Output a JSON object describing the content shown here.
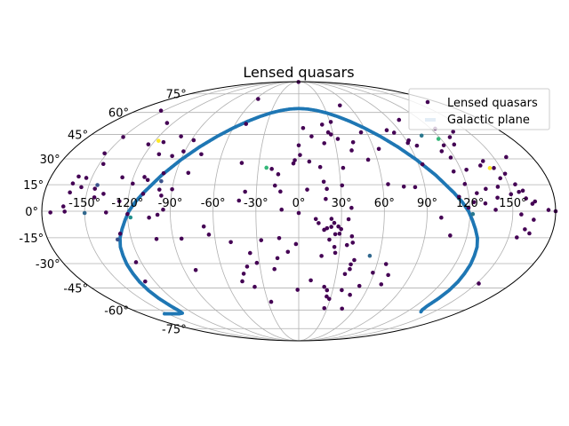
{
  "chart_data": {
    "type": "scatter",
    "projection": "mollweide",
    "title": "Lensed quasars",
    "xlabel": "",
    "ylabel": "",
    "grid": true,
    "legend_placement": "top-right",
    "x_ticks": [
      "-150°",
      "-120°",
      "-90°",
      "-60°",
      "-30°",
      "0°",
      "30°",
      "60°",
      "90°",
      "120°",
      "150°"
    ],
    "x_tick_values": [
      -150,
      -120,
      -90,
      -60,
      -30,
      0,
      30,
      60,
      90,
      120,
      150
    ],
    "y_ticks": [
      "-75°",
      "-60°",
      "-45°",
      "-30°",
      "-15°",
      "0°",
      "15°",
      "30°",
      "45°",
      "60°",
      "75°"
    ],
    "y_tick_values": [
      -75,
      -60,
      -45,
      -30,
      -15,
      0,
      15,
      30,
      45,
      60,
      75
    ],
    "series": [
      {
        "name": "Lensed quasars",
        "color": "#440154",
        "points": [
          [
            -2.4,
            89.0
          ],
          [
            -153,
            61.3
          ],
          [
            -150,
            43.4
          ],
          [
            -152,
            33.3
          ],
          [
            -147,
            27.0
          ],
          [
            -126,
            52.6
          ],
          [
            -123,
            38.8
          ],
          [
            -112,
            40.2
          ],
          [
            -109,
            32.8
          ],
          [
            -101,
            43.8
          ],
          [
            -98,
            31.7
          ],
          [
            -88,
            41.4
          ],
          [
            -91,
            34.5
          ],
          [
            -112,
            19.4
          ],
          [
            -99,
            21.6
          ],
          [
            -76,
            32.8
          ],
          [
            -81,
            21.8
          ],
          [
            -110,
            9.8
          ],
          [
            -128,
            19.2
          ],
          [
            -126,
            5.6
          ],
          [
            -145,
            12.7
          ],
          [
            -138,
            9.8
          ],
          [
            -144,
            7.8
          ],
          [
            -155,
            13.6
          ],
          [
            -160,
            19.7
          ],
          [
            -162,
            15.7
          ],
          [
            -162,
            10.6
          ],
          [
            -154,
            18.9
          ],
          [
            -165,
            2.7
          ],
          [
            -174,
            -0.7
          ],
          [
            -164,
            -0.2
          ],
          [
            -120,
            -1.6
          ],
          [
            -135,
            -0.7
          ],
          [
            -119,
            15.6
          ],
          [
            -109,
            17.7
          ],
          [
            -105,
            -3.6
          ],
          [
            -99,
            12.2
          ],
          [
            -97,
            8.8
          ],
          [
            -90,
            12.4
          ],
          [
            -95,
            0.9
          ],
          [
            -99,
            -2.0
          ],
          [
            -127,
            -12.7
          ],
          [
            -102,
            -15.7
          ],
          [
            -84,
            -15.5
          ],
          [
            -67,
            -8.6
          ],
          [
            -64,
            -13.2
          ],
          [
            -128,
            -40.9
          ],
          [
            -124,
            -29.2
          ],
          [
            -81,
            -33.9
          ],
          [
            -43,
            27.6
          ],
          [
            -38,
            11.0
          ],
          [
            -42,
            6.0
          ],
          [
            -49,
            -17.5
          ],
          [
            -44,
            -36.1
          ],
          [
            -47,
            -40.8
          ],
          [
            -38,
            -44.3
          ],
          [
            -36,
            -23.8
          ],
          [
            -40,
            -31.8
          ],
          [
            -32,
            -29.6
          ],
          [
            -27,
            -54.2
          ],
          [
            -1,
            -46.2
          ],
          [
            -19,
            -33.3
          ],
          [
            -16,
            -26.8
          ],
          [
            -14,
            -15.2
          ],
          [
            -27,
            -16.4
          ],
          [
            -8,
            -23.1
          ],
          [
            -2,
            -18.6
          ],
          [
            -12,
            0.9
          ],
          [
            0,
            -1.0
          ],
          [
            -4,
            27.3
          ],
          [
            -13,
            11.1
          ],
          [
            -17,
            14.5
          ],
          [
            -15,
            21.0
          ],
          [
            -20,
            24.1
          ],
          [
            6,
            12.2
          ],
          [
            18,
            16.7
          ],
          [
            20,
            12.6
          ],
          [
            19,
            6.9
          ],
          [
            12,
            -4.4
          ],
          [
            14,
            -6.7
          ],
          [
            18,
            -10.5
          ],
          [
            20,
            -9.6
          ],
          [
            23,
            -4.3
          ],
          [
            23,
            -8.8
          ],
          [
            28,
            -8.6
          ],
          [
            25,
            -6.6
          ],
          [
            26,
            -13.0
          ],
          [
            29,
            -12.7
          ],
          [
            30,
            -10.1
          ],
          [
            35,
            -4.5
          ],
          [
            37,
            1.9
          ],
          [
            38,
            -14.2
          ],
          [
            39,
            -17.8
          ],
          [
            26,
            -20.3
          ],
          [
            27,
            -23.7
          ],
          [
            35,
            -19.2
          ],
          [
            37,
            -36.3
          ],
          [
            17,
            -25.5
          ],
          [
            22,
            -16.1
          ],
          [
            22,
            -44.3
          ],
          [
            25,
            -46.5
          ],
          [
            27,
            -58.7
          ],
          [
            10,
            -40.2
          ],
          [
            42,
            -27.9
          ],
          [
            40,
            -30.5
          ],
          [
            40,
            -33.3
          ],
          [
            52,
            -43.7
          ],
          [
            59,
            -35.5
          ],
          [
            72,
            -36.9
          ],
          [
            67,
            -30.3
          ],
          [
            70,
            -42.7
          ],
          [
            38,
            -46.4
          ],
          [
            29,
            -52.2
          ],
          [
            26,
            -50.6
          ],
          [
            47,
            -49.5
          ],
          [
            46,
            -59.0
          ],
          [
            31,
            53.3
          ],
          [
            21,
            39.5
          ],
          [
            22,
            51.5
          ],
          [
            26,
            46.4
          ],
          [
            28,
            45.0
          ],
          [
            33,
            42.2
          ],
          [
            45,
            40.1
          ],
          [
            42,
            35.1
          ],
          [
            53,
            29.5
          ],
          [
            55,
            46.4
          ],
          [
            11,
            43.8
          ],
          [
            4,
            49.2
          ],
          [
            1,
            32.3
          ],
          [
            8,
            28.4
          ],
          [
            16,
            25.2
          ],
          [
            -3,
            29.2
          ],
          [
            31,
            14.6
          ],
          [
            33,
            24.7
          ],
          [
            64,
            15.3
          ],
          [
            75,
            13.9
          ],
          [
            83,
            13.6
          ],
          [
            100,
            -3.6
          ],
          [
            108,
            -13.7
          ],
          [
            117,
            30.8
          ],
          [
            124,
            23.6
          ],
          [
            113,
            34.6
          ],
          [
            118,
            38.2
          ],
          [
            127,
            38.7
          ],
          [
            129,
            43.3
          ],
          [
            124,
            48.8
          ],
          [
            99,
            54.7
          ],
          [
            79,
            47.8
          ],
          [
            84,
            46.2
          ],
          [
            92,
            41.3
          ],
          [
            96,
            38.0
          ],
          [
            140,
            28.7
          ],
          [
            136,
            26.1
          ],
          [
            145,
            24.6
          ],
          [
            151,
            21.3
          ],
          [
            155,
            15.2
          ],
          [
            146,
            18.7
          ],
          [
            156,
            10.9
          ],
          [
            150,
            9.6
          ],
          [
            160,
            7.2
          ],
          [
            159,
            11.6
          ],
          [
            166,
            5.5
          ],
          [
            164,
            4.2
          ],
          [
            175,
            0.7
          ],
          [
            140,
            7.6
          ],
          [
            138,
            0.8
          ],
          [
            131,
            4.4
          ],
          [
            133,
            12.6
          ],
          [
            142,
            13.8
          ],
          [
            119,
            15.4
          ],
          [
            123,
            5.1
          ],
          [
            126,
            10.2
          ],
          [
            119,
            2.0
          ],
          [
            113,
            8.1
          ],
          [
            156,
            -14.8
          ],
          [
            165,
            -4.8
          ],
          [
            164,
            -12.5
          ],
          [
            152,
            -42.2
          ],
          [
            180,
            0
          ],
          [
            160,
            -10.2
          ],
          [
            160,
            31.1
          ],
          [
            114,
            22.6
          ],
          [
            156,
            -1.8
          ],
          [
            90,
            39.7
          ],
          [
            50,
            65.3
          ],
          [
            -50,
            52.0
          ],
          [
            -57,
            70.5
          ],
          [
            0,
            38.2
          ],
          [
            64,
            36.0
          ],
          [
            93,
            26.8
          ],
          [
            137,
            46.8
          ]
        ]
      },
      {
        "name": "Galactic plane",
        "color": "#1f77b4",
        "points": [
          [
            0,
            62.9
          ],
          [
            -10,
            62.5
          ],
          [
            -20,
            61.4
          ],
          [
            -30,
            59.6
          ],
          [
            -40,
            57.0
          ],
          [
            -50,
            53.6
          ],
          [
            -60,
            49.2
          ],
          [
            -70,
            43.8
          ],
          [
            -80,
            37.2
          ],
          [
            -90,
            29.4
          ],
          [
            -100,
            20.4
          ],
          [
            -110,
            10.3
          ],
          [
            -115,
            5.0
          ],
          [
            -119,
            0
          ],
          [
            -122,
            -5.1
          ],
          [
            -125,
            -10.1
          ],
          [
            -128,
            -15.2
          ],
          [
            -130,
            -20.3
          ],
          [
            -131,
            -25.4
          ],
          [
            -132,
            -30.5
          ],
          [
            -132.5,
            -36.0
          ],
          [
            -133,
            -41.2
          ],
          [
            -133,
            -46.6
          ],
          [
            -132.5,
            -51.9
          ],
          [
            -131.5,
            -57.2
          ],
          [
            -131,
            -60.6
          ],
          [
            -132,
            -62.3
          ],
          [
            -137,
            -62.8
          ],
          [
            -145,
            -62.8
          ],
          [
            -152,
            -62.8
          ],
          [
            -155,
            -62.8
          ],
          [
            10,
            62.5
          ],
          [
            20,
            61.4
          ],
          [
            30,
            59.6
          ],
          [
            40,
            57.0
          ],
          [
            50,
            53.6
          ],
          [
            60,
            49.2
          ],
          [
            70,
            43.8
          ],
          [
            80,
            37.2
          ],
          [
            90,
            29.4
          ],
          [
            100,
            20.4
          ],
          [
            110,
            10.3
          ],
          [
            115,
            5.0
          ],
          [
            119,
            0
          ],
          [
            122,
            -5.1
          ],
          [
            125,
            -10.1
          ],
          [
            128,
            -15.2
          ],
          [
            130,
            -20.3
          ],
          [
            131,
            -25.4
          ],
          [
            132,
            -30.5
          ],
          [
            132.5,
            -36.0
          ],
          [
            133,
            -41.2
          ],
          [
            133,
            -46.6
          ],
          [
            132.5,
            -51.9
          ],
          [
            132,
            -57.2
          ],
          [
            133.5,
            -60.0
          ],
          [
            137,
            -62.0
          ]
        ]
      }
    ],
    "highlight_points": [
      {
        "lon": -117,
        "lat": 41.0,
        "color": "#fde725"
      },
      {
        "lon": -118,
        "lat": -3.5,
        "color": "#21918c"
      },
      {
        "lon": -130,
        "lat": -16.0,
        "color": "#3b528b"
      },
      {
        "lon": -150,
        "lat": -1.0,
        "color": "#31688e"
      },
      {
        "lon": -99,
        "lat": 17.0,
        "color": "#3b528b"
      },
      {
        "lon": -24,
        "lat": 24.8,
        "color": "#35b779"
      },
      {
        "lon": 53,
        "lat": -25.4,
        "color": "#31688e"
      },
      {
        "lon": 106,
        "lat": 44.3,
        "color": "#2a788e"
      },
      {
        "lon": 118,
        "lat": 42.2,
        "color": "#35b779"
      },
      {
        "lon": 142,
        "lat": 24.6,
        "color": "#fde725"
      },
      {
        "lon": 122,
        "lat": -1.6,
        "color": "#2a788e"
      },
      {
        "lon": -144,
        "lat": 14.8,
        "color": "#3b528b"
      }
    ]
  }
}
